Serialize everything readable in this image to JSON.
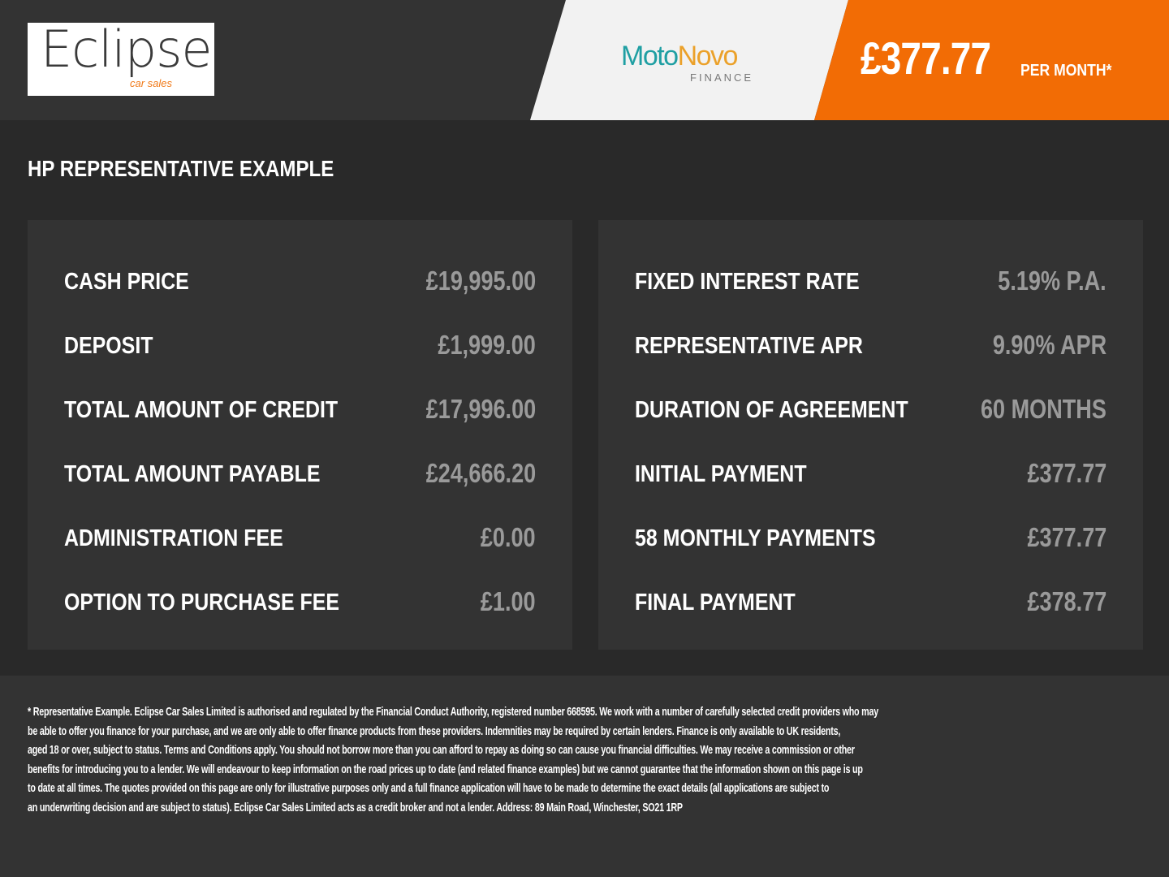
{
  "header": {
    "logo_text": "Eclipse",
    "logo_sub": "car sales",
    "partner_logo_a": "Moto",
    "partner_logo_b": "Novo",
    "partner_logo_sub": "FINANCE",
    "monthly_price": "£377.77",
    "per_month": "PER MONTH*",
    "colors": {
      "accent": "#f26c05",
      "header_bg": "#333333"
    }
  },
  "title": "HP REPRESENTATIVE EXAMPLE",
  "left": [
    {
      "label": "CASH PRICE",
      "value": "£19,995.00"
    },
    {
      "label": "DEPOSIT",
      "value": "£1,999.00"
    },
    {
      "label": "TOTAL AMOUNT OF CREDIT",
      "value": "£17,996.00"
    },
    {
      "label": "TOTAL AMOUNT PAYABLE",
      "value": "£24,666.20"
    },
    {
      "label": "ADMINISTRATION FEE",
      "value": "£0.00"
    },
    {
      "label": "OPTION TO PURCHASE FEE",
      "value": "£1.00"
    }
  ],
  "right": [
    {
      "label": "FIXED INTEREST RATE",
      "value": "5.19% P.A."
    },
    {
      "label": "REPRESENTATIVE APR",
      "value": "9.90% APR"
    },
    {
      "label": "DURATION OF AGREEMENT",
      "value": "60 MONTHS"
    },
    {
      "label": "INITIAL PAYMENT",
      "value": "£377.77"
    },
    {
      "label": "58 MONTHLY PAYMENTS",
      "value": "£377.77"
    },
    {
      "label": "FINAL PAYMENT",
      "value": "£378.77"
    }
  ],
  "footer": [
    "* Representative Example. Eclipse Car Sales Limited is authorised and regulated by the Financial Conduct Authority, registered number 668595. We work with a number of carefully selected credit providers who may",
    "be able to offer you finance for your purchase, and we are only able to offer finance products from these providers. Indemnities may be required by certain lenders. Finance is only available to UK residents,",
    "aged 18 or over, subject to status. Terms and Conditions apply. You should not borrow more than you can afford to repay as doing so can cause you financial difficulties. We may receive a commission or other",
    "benefits for introducing you to a lender. We will endeavour to keep information on the road prices up to date (and related finance examples) but we cannot guarantee that the information shown on this page is up",
    "to date at all times. The quotes provided on this page are only for illustrative purposes only and a full finance application will have to be made to determine the exact details (all applications are subject to",
    "an underwriting decision and are subject to status). Eclipse Car Sales Limited acts as a credit broker and not a lender. Address: 89 Main Road, Winchester, SO21 1RP"
  ]
}
